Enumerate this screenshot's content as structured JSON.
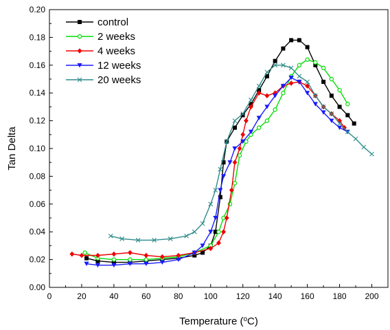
{
  "chart_data": {
    "type": "line",
    "xlabel": {
      "prefix": "Temperature (",
      "sup": "o",
      "suffix": "C)"
    },
    "ylabel": "Tan Delta",
    "xlim": [
      0,
      210
    ],
    "ylim": [
      0,
      0.2
    ],
    "xticks": [
      "0",
      "20",
      "40",
      "60",
      "80",
      "100",
      "120",
      "140",
      "160",
      "180",
      "200"
    ],
    "yticks": [
      "0.00",
      "0.02",
      "0.04",
      "0.06",
      "0.08",
      "0.10",
      "0.12",
      "0.14",
      "0.16",
      "0.18",
      "0.20"
    ],
    "grid": false,
    "legend_position": "top-left",
    "series": [
      {
        "name": "control",
        "color": "#000000",
        "marker": "square",
        "points": [
          [
            23,
            0.021
          ],
          [
            30,
            0.019
          ],
          [
            40,
            0.018
          ],
          [
            50,
            0.018
          ],
          [
            60,
            0.019
          ],
          [
            70,
            0.02
          ],
          [
            80,
            0.021
          ],
          [
            90,
            0.023
          ],
          [
            95,
            0.025
          ],
          [
            100,
            0.03
          ],
          [
            103,
            0.04
          ],
          [
            106,
            0.065
          ],
          [
            108,
            0.09
          ],
          [
            110,
            0.105
          ],
          [
            115,
            0.115
          ],
          [
            120,
            0.124
          ],
          [
            125,
            0.132
          ],
          [
            130,
            0.142
          ],
          [
            135,
            0.152
          ],
          [
            140,
            0.163
          ],
          [
            145,
            0.172
          ],
          [
            150,
            0.178
          ],
          [
            155,
            0.178
          ],
          [
            160,
            0.173
          ],
          [
            165,
            0.16
          ],
          [
            170,
            0.148
          ],
          [
            175,
            0.138
          ],
          [
            180,
            0.13
          ],
          [
            185,
            0.124
          ],
          [
            189,
            0.118
          ]
        ]
      },
      {
        "name": "2 weeks",
        "color": "#00dd00",
        "marker": "circle-open",
        "points": [
          [
            22,
            0.025
          ],
          [
            30,
            0.021
          ],
          [
            40,
            0.02
          ],
          [
            50,
            0.02
          ],
          [
            60,
            0.02
          ],
          [
            70,
            0.021
          ],
          [
            80,
            0.022
          ],
          [
            90,
            0.025
          ],
          [
            100,
            0.03
          ],
          [
            105,
            0.04
          ],
          [
            108,
            0.05
          ],
          [
            112,
            0.06
          ],
          [
            115,
            0.075
          ],
          [
            118,
            0.095
          ],
          [
            122,
            0.105
          ],
          [
            125,
            0.11
          ],
          [
            130,
            0.115
          ],
          [
            135,
            0.12
          ],
          [
            140,
            0.128
          ],
          [
            145,
            0.14
          ],
          [
            150,
            0.152
          ],
          [
            155,
            0.16
          ],
          [
            160,
            0.164
          ],
          [
            165,
            0.162
          ],
          [
            170,
            0.158
          ],
          [
            175,
            0.15
          ],
          [
            180,
            0.142
          ],
          [
            185,
            0.132
          ]
        ]
      },
      {
        "name": "4 weeks",
        "color": "#ee0000",
        "marker": "diamond",
        "points": [
          [
            14,
            0.024
          ],
          [
            20,
            0.023
          ],
          [
            30,
            0.023
          ],
          [
            40,
            0.024
          ],
          [
            50,
            0.025
          ],
          [
            60,
            0.023
          ],
          [
            70,
            0.022
          ],
          [
            80,
            0.023
          ],
          [
            90,
            0.025
          ],
          [
            100,
            0.028
          ],
          [
            105,
            0.032
          ],
          [
            108,
            0.04
          ],
          [
            110,
            0.05
          ],
          [
            113,
            0.07
          ],
          [
            115,
            0.09
          ],
          [
            118,
            0.1
          ],
          [
            120,
            0.11
          ],
          [
            122,
            0.12
          ],
          [
            125,
            0.13
          ],
          [
            130,
            0.14
          ],
          [
            135,
            0.138
          ],
          [
            140,
            0.14
          ],
          [
            145,
            0.145
          ],
          [
            150,
            0.147
          ],
          [
            155,
            0.148
          ],
          [
            160,
            0.145
          ],
          [
            165,
            0.138
          ],
          [
            170,
            0.13
          ],
          [
            175,
            0.125
          ],
          [
            180,
            0.12
          ],
          [
            183,
            0.115
          ]
        ]
      },
      {
        "name": "12 weeks",
        "color": "#1a1aff",
        "marker": "triangle-down",
        "points": [
          [
            23,
            0.017
          ],
          [
            30,
            0.016
          ],
          [
            40,
            0.016
          ],
          [
            50,
            0.017
          ],
          [
            60,
            0.017
          ],
          [
            70,
            0.018
          ],
          [
            80,
            0.02
          ],
          [
            90,
            0.025
          ],
          [
            95,
            0.03
          ],
          [
            100,
            0.04
          ],
          [
            103,
            0.05
          ],
          [
            106,
            0.07
          ],
          [
            108,
            0.08
          ],
          [
            112,
            0.09
          ],
          [
            115,
            0.1
          ],
          [
            120,
            0.105
          ],
          [
            125,
            0.112
          ],
          [
            130,
            0.122
          ],
          [
            135,
            0.13
          ],
          [
            140,
            0.138
          ],
          [
            145,
            0.145
          ],
          [
            150,
            0.151
          ],
          [
            155,
            0.148
          ],
          [
            160,
            0.14
          ],
          [
            165,
            0.132
          ],
          [
            170,
            0.126
          ],
          [
            175,
            0.12
          ],
          [
            180,
            0.115
          ],
          [
            185,
            0.112
          ]
        ]
      },
      {
        "name": "20 weeks",
        "color": "#2e8b8b",
        "marker": "x",
        "points": [
          [
            38,
            0.037
          ],
          [
            45,
            0.035
          ],
          [
            55,
            0.034
          ],
          [
            65,
            0.034
          ],
          [
            75,
            0.035
          ],
          [
            85,
            0.037
          ],
          [
            90,
            0.04
          ],
          [
            95,
            0.046
          ],
          [
            100,
            0.06
          ],
          [
            103,
            0.07
          ],
          [
            106,
            0.085
          ],
          [
            110,
            0.105
          ],
          [
            115,
            0.12
          ],
          [
            120,
            0.125
          ],
          [
            125,
            0.135
          ],
          [
            130,
            0.145
          ],
          [
            135,
            0.155
          ],
          [
            140,
            0.16
          ],
          [
            145,
            0.16
          ],
          [
            150,
            0.158
          ],
          [
            155,
            0.152
          ],
          [
            160,
            0.148
          ],
          [
            165,
            0.138
          ],
          [
            170,
            0.13
          ],
          [
            175,
            0.125
          ],
          [
            180,
            0.118
          ],
          [
            185,
            0.112
          ],
          [
            190,
            0.107
          ],
          [
            195,
            0.101
          ],
          [
            200,
            0.096
          ]
        ]
      }
    ]
  }
}
